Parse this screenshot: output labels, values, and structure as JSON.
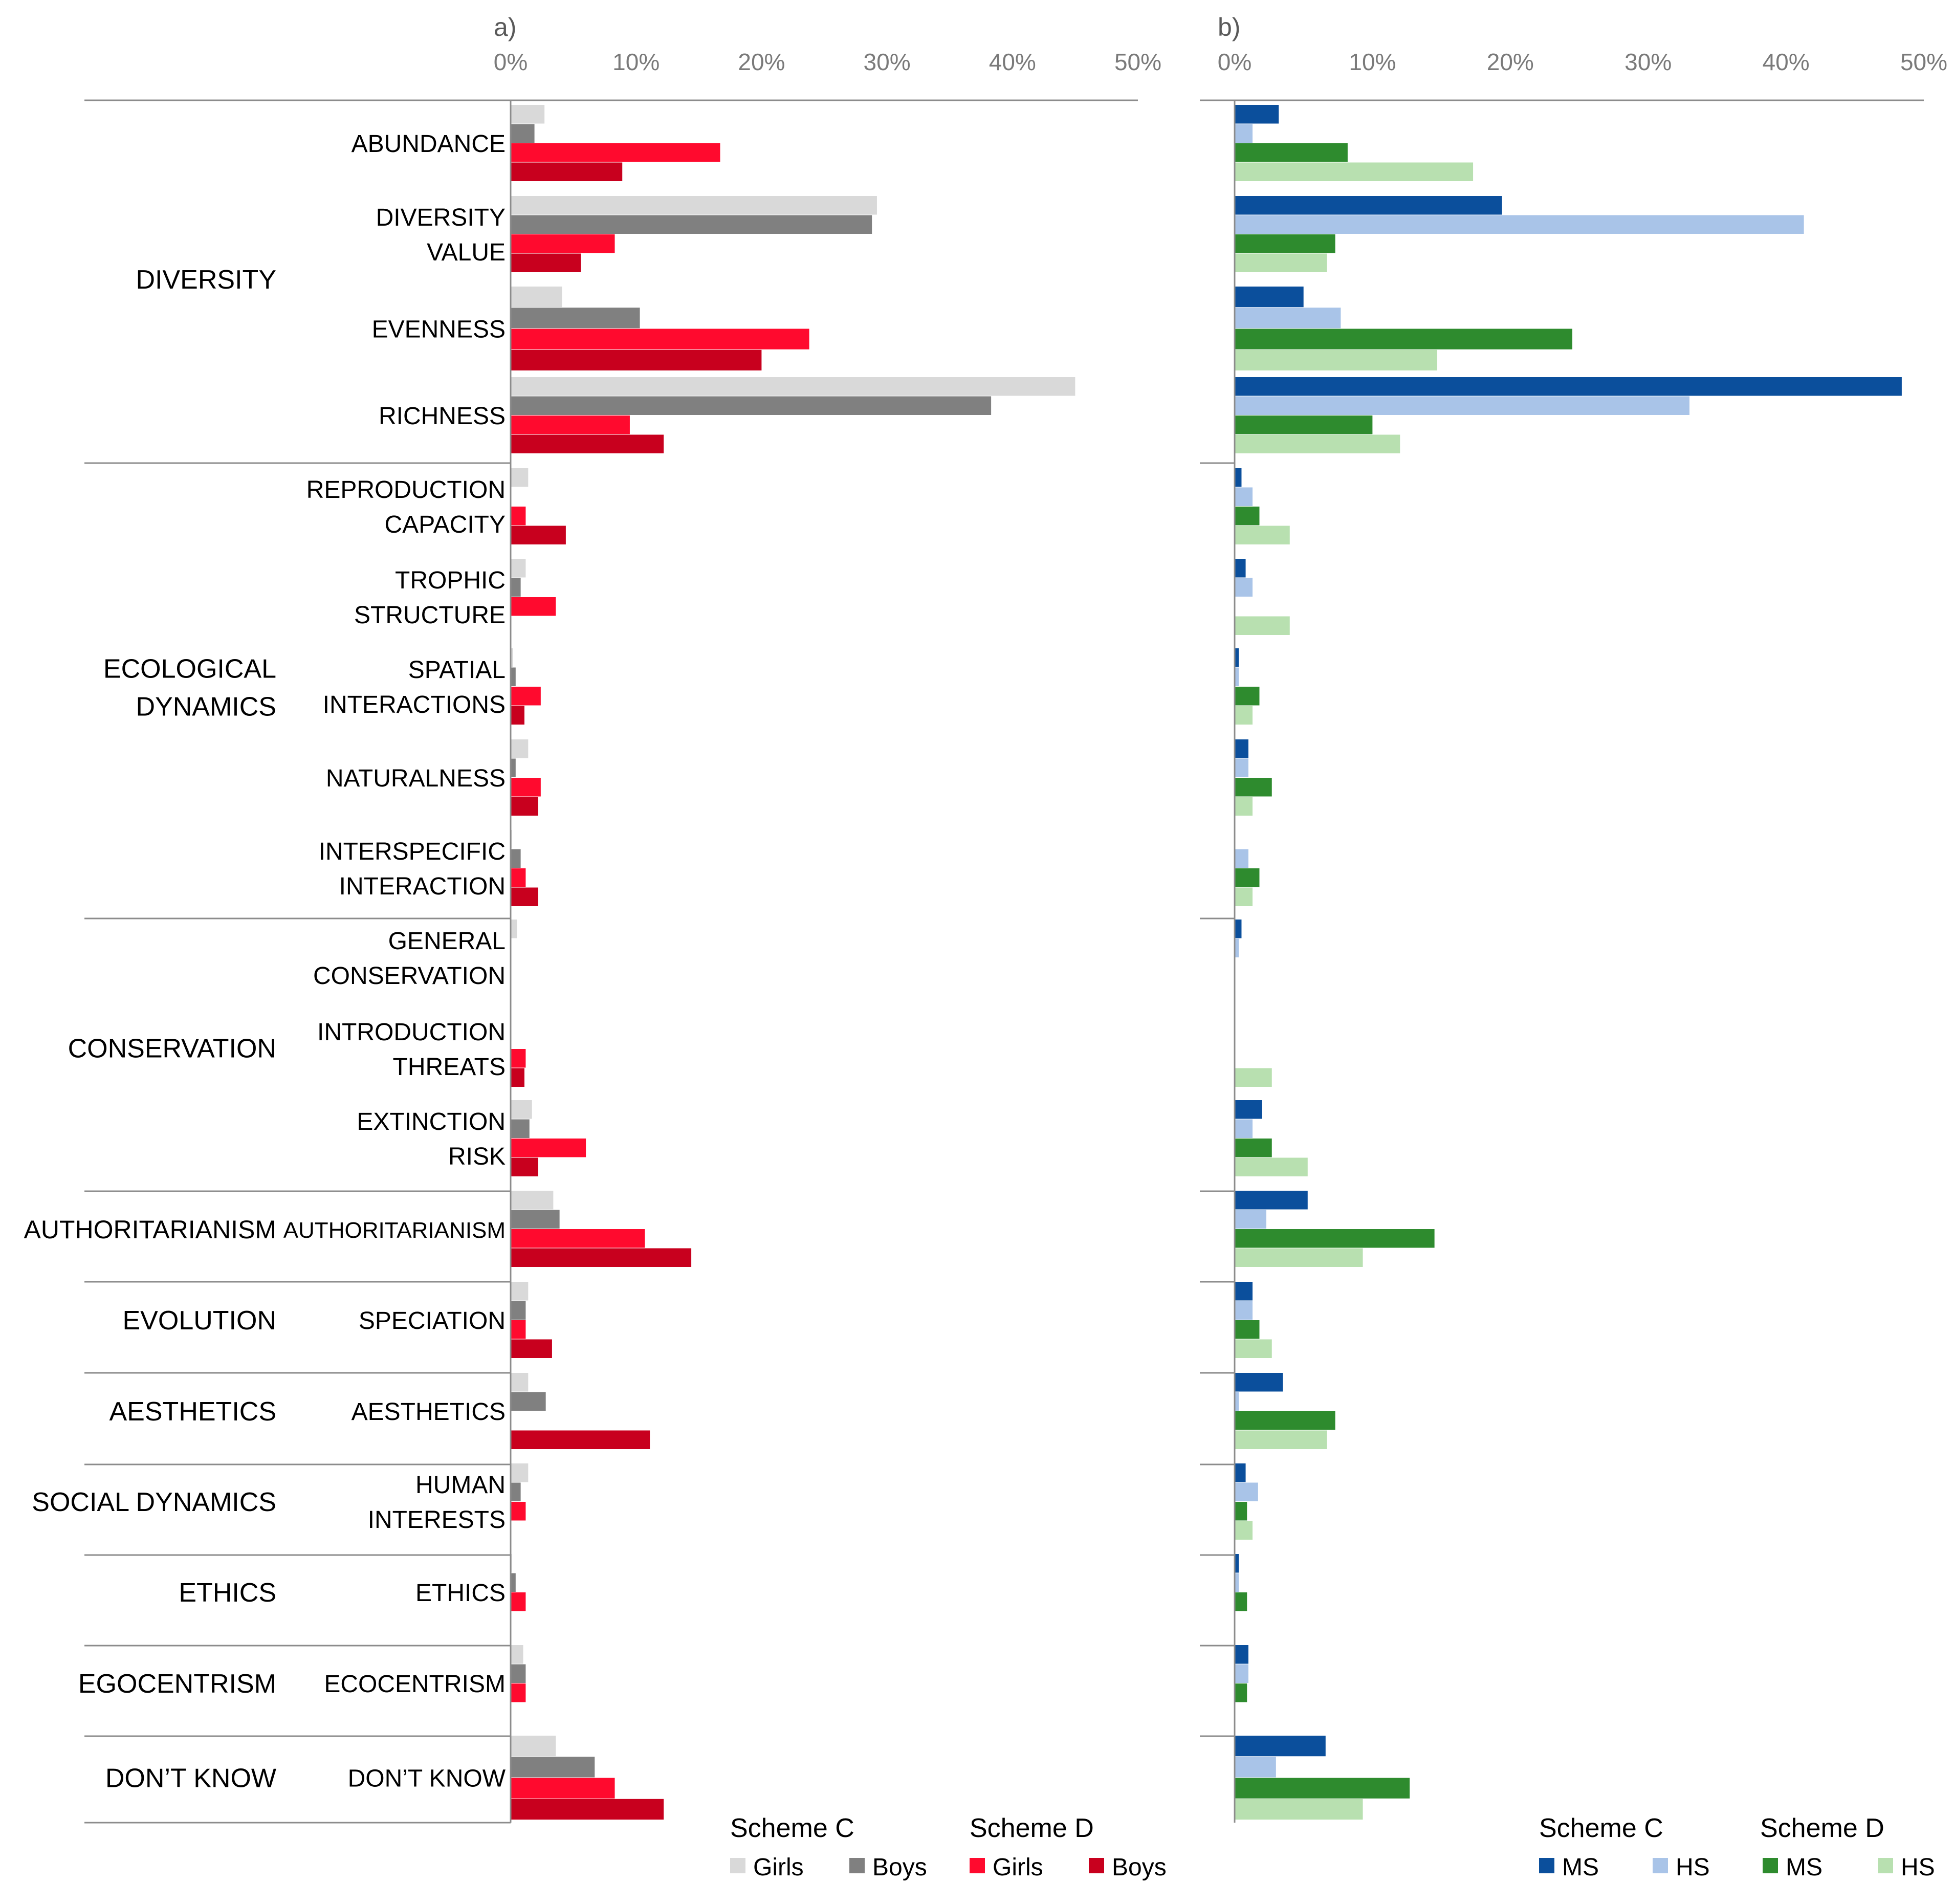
{
  "chart_data": [
    {
      "type": "bar",
      "orientation": "horizontal",
      "panel_label": "a)",
      "xlim": [
        0,
        50
      ],
      "x_ticks": [
        "0%",
        "10%",
        "20%",
        "30%",
        "40%",
        "50%"
      ],
      "categories": [
        "ABUNDANCE",
        "DIVERSITY VALUE",
        "EVENNESS",
        "RICHNESS",
        "REPRODUCTION CAPACITY",
        "TROPHIC STRUCTURE",
        "SPATIAL INTERACTIONS",
        "NATURALNESS",
        "INTERSPECIFIC INTERACTION",
        "GENERAL CONSERVATION",
        "INTRODUCTION THREATS",
        "EXTINCTION RISK",
        "AUTHORITARIANISM",
        "SPECIATION",
        "AESTHETICS",
        "HUMAN INTERESTS",
        "ETHICS",
        "ECOCENTRISM",
        "DON'T KNOW"
      ],
      "legend": [
        {
          "scheme": "Scheme C",
          "items": [
            "Girls",
            "Boys"
          ]
        },
        {
          "scheme": "Scheme D",
          "items": [
            "Girls",
            "Boys"
          ]
        }
      ],
      "series": [
        {
          "name": "Scheme C Girls",
          "color": "#d9d9d9",
          "values": [
            2.7,
            29.2,
            4.1,
            45.0,
            1.4,
            1.2,
            0.2,
            1.4,
            0.1,
            0.5,
            0.0,
            1.7,
            3.4,
            1.4,
            1.4,
            1.4,
            0.1,
            1.0,
            3.6
          ]
        },
        {
          "name": "Scheme C Boys",
          "color": "#808080",
          "values": [
            1.9,
            28.8,
            10.3,
            38.3,
            0.0,
            0.8,
            0.4,
            0.4,
            0.8,
            0.0,
            0.0,
            1.5,
            3.9,
            1.2,
            2.8,
            0.8,
            0.4,
            1.2,
            6.7
          ]
        },
        {
          "name": "Scheme D Girls",
          "color": "#ff0a2e",
          "values": [
            16.7,
            8.3,
            23.8,
            9.5,
            1.2,
            3.6,
            2.4,
            2.4,
            1.2,
            0.0,
            1.2,
            6.0,
            10.7,
            1.2,
            0.0,
            1.2,
            1.2,
            1.2,
            8.3
          ]
        },
        {
          "name": "Scheme D Boys",
          "color": "#c8001e",
          "values": [
            8.9,
            5.6,
            20.0,
            12.2,
            4.4,
            0.0,
            1.1,
            2.2,
            2.2,
            0.0,
            1.1,
            2.2,
            14.4,
            3.3,
            11.1,
            0.0,
            0.0,
            0.0,
            12.2
          ]
        }
      ]
    },
    {
      "type": "bar",
      "orientation": "horizontal",
      "panel_label": "b)",
      "xlim": [
        0,
        50
      ],
      "x_ticks": [
        "0%",
        "10%",
        "20%",
        "30%",
        "40%",
        "50%"
      ],
      "categories": [
        "ABUNDANCE",
        "DIVERSITY VALUE",
        "EVENNESS",
        "RICHNESS",
        "REPRODUCTION CAPACITY",
        "TROPHIC STRUCTURE",
        "SPATIAL INTERACTIONS",
        "NATURALNESS",
        "INTERSPECIFIC INTERACTION",
        "GENERAL CONSERVATION",
        "INTRODUCTION THREATS",
        "EXTINCTION RISK",
        "AUTHORITARIANISM",
        "SPECIATION",
        "AESTHETICS",
        "HUMAN INTERESTS",
        "ETHICS",
        "ECOCENTRISM",
        "DON'T KNOW"
      ],
      "legend": [
        {
          "scheme": "Scheme C",
          "items": [
            "MS",
            "HS"
          ]
        },
        {
          "scheme": "Scheme D",
          "items": [
            "MS",
            "HS"
          ]
        }
      ],
      "series": [
        {
          "name": "Scheme C MS",
          "color": "#0b4f9c",
          "values": [
            3.2,
            19.4,
            5.0,
            48.4,
            0.5,
            0.8,
            0.3,
            1.0,
            0.0,
            0.5,
            0.0,
            2.0,
            5.3,
            1.3,
            3.5,
            0.8,
            0.3,
            1.0,
            6.6
          ]
        },
        {
          "name": "Scheme C HS",
          "color": "#a9c4e8",
          "values": [
            1.3,
            41.3,
            7.7,
            33.0,
            1.3,
            1.3,
            0.3,
            1.0,
            1.0,
            0.3,
            0.0,
            1.3,
            2.3,
            1.3,
            0.3,
            1.7,
            0.3,
            1.0,
            3.0
          ]
        },
        {
          "name": "Scheme D MS",
          "color": "#2e8b2e",
          "values": [
            8.2,
            7.3,
            24.5,
            10.0,
            1.8,
            0.0,
            1.8,
            2.7,
            1.8,
            0.0,
            0.0,
            2.7,
            14.5,
            1.8,
            7.3,
            0.9,
            0.9,
            0.9,
            12.7
          ]
        },
        {
          "name": "Scheme D HS",
          "color": "#b8e0b0",
          "values": [
            17.3,
            6.7,
            14.7,
            12.0,
            4.0,
            4.0,
            1.3,
            1.3,
            1.3,
            0.0,
            2.7,
            5.3,
            9.3,
            2.7,
            6.7,
            1.3,
            0.0,
            0.0,
            9.3
          ]
        }
      ]
    }
  ],
  "labels": {
    "categories": [
      {
        "lines": [
          "ABUNDANCE"
        ]
      },
      {
        "lines": [
          "DIVERSITY",
          "VALUE"
        ]
      },
      {
        "lines": [
          "EVENNESS"
        ]
      },
      {
        "lines": [
          "RICHNESS"
        ]
      },
      {
        "lines": [
          "REPRODUCTION",
          "CAPACITY"
        ]
      },
      {
        "lines": [
          "TROPHIC",
          "STRUCTURE"
        ]
      },
      {
        "lines": [
          "SPATIAL",
          "INTERACTIONS"
        ]
      },
      {
        "lines": [
          "NATURALNESS"
        ]
      },
      {
        "lines": [
          "INTERSPECIFIC",
          "INTERACTION"
        ]
      },
      {
        "lines": [
          "GENERAL",
          "CONSERVATION"
        ]
      },
      {
        "lines": [
          "INTRODUCTION",
          "THREATS"
        ]
      },
      {
        "lines": [
          "EXTINCTION",
          "RISK"
        ]
      },
      {
        "lines": [
          "AUTHORITARIANISM"
        ]
      },
      {
        "lines": [
          "SPECIATION"
        ]
      },
      {
        "lines": [
          "AESTHETICS"
        ]
      },
      {
        "lines": [
          "HUMAN",
          "INTERESTS"
        ]
      },
      {
        "lines": [
          "ETHICS"
        ]
      },
      {
        "lines": [
          "ECOCENTRISM"
        ]
      },
      {
        "lines": [
          "DON’T KNOW"
        ]
      }
    ],
    "groups": [
      {
        "lines": [
          "DIVERSITY"
        ],
        "first": 0,
        "last": 3
      },
      {
        "lines": [
          "ECOLOGICAL",
          "DYNAMICS"
        ],
        "first": 4,
        "last": 8
      },
      {
        "lines": [
          "CONSERVATION"
        ],
        "first": 9,
        "last": 11
      },
      {
        "lines": [
          "AUTHORITARIANISM"
        ],
        "first": 12,
        "last": 12
      },
      {
        "lines": [
          "EVOLUTION"
        ],
        "first": 13,
        "last": 13
      },
      {
        "lines": [
          "AESTHETICS"
        ],
        "first": 14,
        "last": 14
      },
      {
        "lines": [
          "SOCIAL DYNAMICS"
        ],
        "first": 15,
        "last": 15
      },
      {
        "lines": [
          "ETHICS"
        ],
        "first": 16,
        "last": 16
      },
      {
        "lines": [
          "EGOCENTRISM"
        ],
        "first": 17,
        "last": 17
      },
      {
        "lines": [
          "DON’T KNOW"
        ],
        "first": 18,
        "last": 18
      }
    ]
  }
}
